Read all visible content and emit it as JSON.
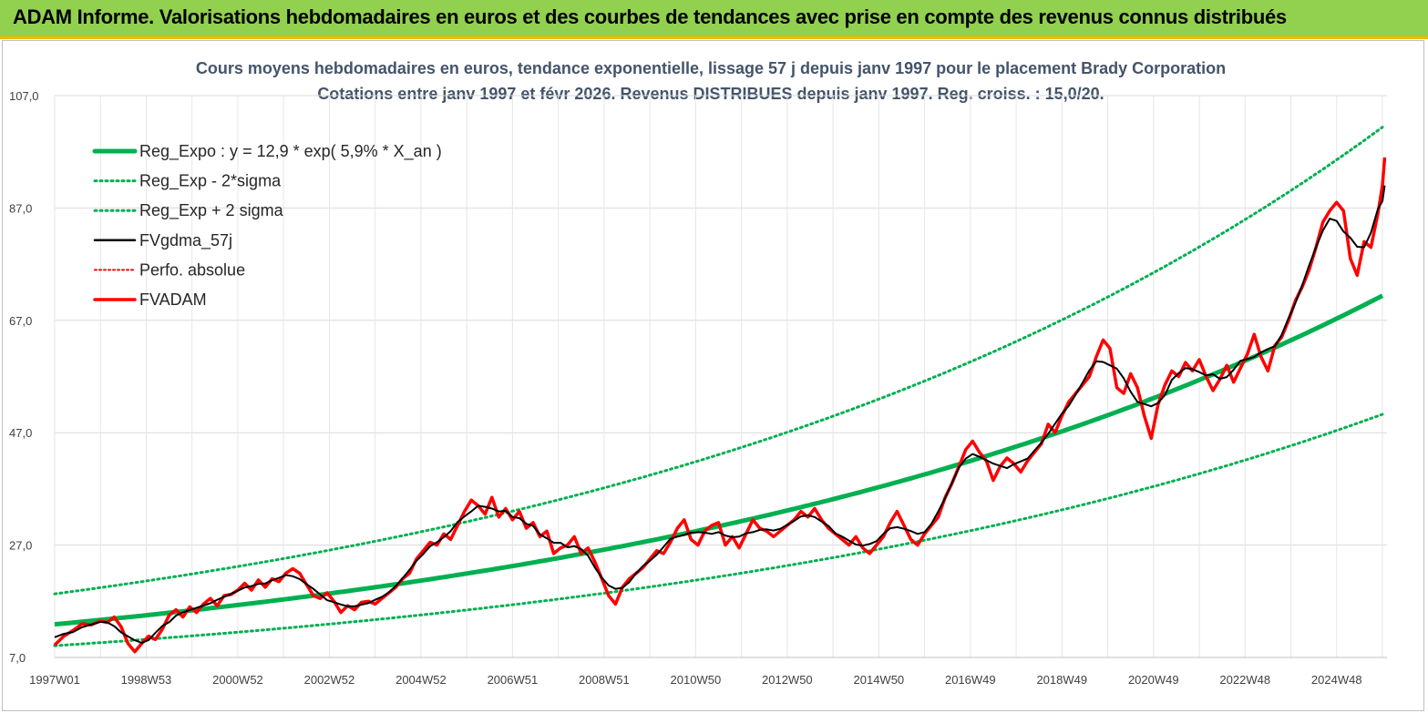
{
  "header": {
    "title": "ADAM Informe. Valorisations hebdomadaires en euros et des courbes de tendances avec prise en compte des revenus connus distribués"
  },
  "colors": {
    "banner": "#92d050",
    "trend": "#00b050",
    "sigma": "#00b050",
    "smooth": "#000000",
    "perf": "#ff0000",
    "price": "#ff0000"
  },
  "chart_data": {
    "type": "line",
    "title": "Cours moyens hebdomadaires en euros, tendance exponentielle, lissage 57 j depuis janv 1997 pour le placement Brady Corporation",
    "subtitle": "Cotations entre janv 1997 et févr 2026. Revenus DISTRIBUES depuis janv 1997. Reg. croiss. : 15,0/20.",
    "xlabel": "",
    "ylabel": "",
    "ylim": [
      7,
      107
    ],
    "xlim": [
      1997.0,
      2026.1
    ],
    "y_ticks": [
      "7,0",
      "27,0",
      "47,0",
      "67,0",
      "87,0",
      "107,0"
    ],
    "x_ticks": [
      {
        "label": "1997W01",
        "x": 1997.0
      },
      {
        "label": "1998W53",
        "x": 1999.0
      },
      {
        "label": "2000W52",
        "x": 2001.0
      },
      {
        "label": "2002W52",
        "x": 2003.0
      },
      {
        "label": "2004W52",
        "x": 2005.0
      },
      {
        "label": "2006W51",
        "x": 2007.0
      },
      {
        "label": "2008W51",
        "x": 2009.0
      },
      {
        "label": "2010W50",
        "x": 2011.0
      },
      {
        "label": "2012W50",
        "x": 2013.0
      },
      {
        "label": "2014W50",
        "x": 2015.0
      },
      {
        "label": "2016W49",
        "x": 2017.0
      },
      {
        "label": "2018W49",
        "x": 2019.0
      },
      {
        "label": "2020W49",
        "x": 2021.0
      },
      {
        "label": "2022W48",
        "x": 2023.0
      },
      {
        "label": "2024W48",
        "x": 2025.0
      }
    ],
    "grid": true,
    "legend_position": "top-left",
    "regression": {
      "a": 12.9,
      "rate": 0.059,
      "sigma_factor": 1.42
    },
    "series": [
      {
        "name": "Reg_Expo : y = 12,9 * exp( 5,9% *  X_an )",
        "style": "trend"
      },
      {
        "name": "Reg_Exp - 2*sigma",
        "style": "sigma_low"
      },
      {
        "name": "Reg_Exp + 2 sigma",
        "style": "sigma_high"
      },
      {
        "name": "FVgdma_57j",
        "style": "smooth"
      },
      {
        "name": "Perfo. absolue",
        "style": "perf"
      },
      {
        "name": "FVADAM",
        "style": "price",
        "points": [
          [
            1997.0,
            9.2
          ],
          [
            1997.2,
            10.8
          ],
          [
            1997.4,
            11.8
          ],
          [
            1997.6,
            13.0
          ],
          [
            1997.8,
            12.8
          ],
          [
            1998.0,
            13.5
          ],
          [
            1998.15,
            13.2
          ],
          [
            1998.3,
            14.2
          ],
          [
            1998.45,
            12.5
          ],
          [
            1998.6,
            9.5
          ],
          [
            1998.75,
            8.0
          ],
          [
            1998.9,
            9.5
          ],
          [
            1999.05,
            10.8
          ],
          [
            1999.2,
            10.2
          ],
          [
            1999.35,
            12.0
          ],
          [
            1999.5,
            14.5
          ],
          [
            1999.65,
            15.5
          ],
          [
            1999.8,
            14.2
          ],
          [
            1999.95,
            16.0
          ],
          [
            2000.1,
            15.0
          ],
          [
            2000.25,
            16.5
          ],
          [
            2000.4,
            17.5
          ],
          [
            2000.55,
            16.2
          ],
          [
            2000.7,
            18.0
          ],
          [
            2000.85,
            18.2
          ],
          [
            2001.0,
            19.0
          ],
          [
            2001.15,
            20.2
          ],
          [
            2001.3,
            19.0
          ],
          [
            2001.45,
            20.8
          ],
          [
            2001.6,
            19.5
          ],
          [
            2001.75,
            21.0
          ],
          [
            2001.9,
            20.5
          ],
          [
            2002.05,
            22.0
          ],
          [
            2002.2,
            22.8
          ],
          [
            2002.35,
            22.0
          ],
          [
            2002.5,
            20.0
          ],
          [
            2002.65,
            18.0
          ],
          [
            2002.8,
            17.5
          ],
          [
            2002.95,
            18.5
          ],
          [
            2003.1,
            17.0
          ],
          [
            2003.25,
            15.0
          ],
          [
            2003.4,
            16.2
          ],
          [
            2003.55,
            15.5
          ],
          [
            2003.7,
            16.8
          ],
          [
            2003.85,
            17.0
          ],
          [
            2004.0,
            16.5
          ],
          [
            2004.15,
            17.5
          ],
          [
            2004.3,
            18.5
          ],
          [
            2004.45,
            19.5
          ],
          [
            2004.6,
            21.0
          ],
          [
            2004.75,
            22.0
          ],
          [
            2004.9,
            24.5
          ],
          [
            2005.05,
            26.0
          ],
          [
            2005.2,
            27.5
          ],
          [
            2005.35,
            27.0
          ],
          [
            2005.5,
            29.0
          ],
          [
            2005.65,
            28.0
          ],
          [
            2005.8,
            30.5
          ],
          [
            2005.95,
            33.0
          ],
          [
            2006.1,
            35.0
          ],
          [
            2006.25,
            34.0
          ],
          [
            2006.4,
            32.5
          ],
          [
            2006.55,
            35.5
          ],
          [
            2006.7,
            32.0
          ],
          [
            2006.85,
            33.5
          ],
          [
            2007.0,
            31.5
          ],
          [
            2007.15,
            33.0
          ],
          [
            2007.3,
            30.0
          ],
          [
            2007.45,
            31.0
          ],
          [
            2007.6,
            28.5
          ],
          [
            2007.75,
            29.5
          ],
          [
            2007.9,
            25.5
          ],
          [
            2008.05,
            26.5
          ],
          [
            2008.2,
            27.0
          ],
          [
            2008.35,
            28.5
          ],
          [
            2008.5,
            25.5
          ],
          [
            2008.65,
            26.5
          ],
          [
            2008.8,
            24.0
          ],
          [
            2008.95,
            21.0
          ],
          [
            2009.1,
            18.0
          ],
          [
            2009.25,
            16.5
          ],
          [
            2009.4,
            19.5
          ],
          [
            2009.55,
            21.0
          ],
          [
            2009.7,
            22.0
          ],
          [
            2009.85,
            23.0
          ],
          [
            2010.0,
            24.5
          ],
          [
            2010.15,
            26.0
          ],
          [
            2010.3,
            25.5
          ],
          [
            2010.45,
            27.5
          ],
          [
            2010.6,
            30.0
          ],
          [
            2010.75,
            31.5
          ],
          [
            2010.9,
            28.0
          ],
          [
            2011.05,
            27.0
          ],
          [
            2011.2,
            29.5
          ],
          [
            2011.35,
            30.5
          ],
          [
            2011.5,
            31.0
          ],
          [
            2011.65,
            27.0
          ],
          [
            2011.8,
            28.5
          ],
          [
            2011.95,
            26.5
          ],
          [
            2012.1,
            29.0
          ],
          [
            2012.25,
            31.5
          ],
          [
            2012.4,
            30.0
          ],
          [
            2012.55,
            29.5
          ],
          [
            2012.7,
            28.5
          ],
          [
            2012.85,
            29.5
          ],
          [
            2013.0,
            30.5
          ],
          [
            2013.15,
            31.5
          ],
          [
            2013.3,
            33.0
          ],
          [
            2013.45,
            32.0
          ],
          [
            2013.6,
            33.5
          ],
          [
            2013.75,
            31.5
          ],
          [
            2013.9,
            30.0
          ],
          [
            2014.05,
            29.0
          ],
          [
            2014.2,
            28.0
          ],
          [
            2014.35,
            27.0
          ],
          [
            2014.5,
            28.5
          ],
          [
            2014.65,
            26.5
          ],
          [
            2014.8,
            25.5
          ],
          [
            2014.95,
            27.0
          ],
          [
            2015.1,
            28.5
          ],
          [
            2015.25,
            31.0
          ],
          [
            2015.4,
            33.0
          ],
          [
            2015.55,
            30.5
          ],
          [
            2015.7,
            28.0
          ],
          [
            2015.85,
            27.0
          ],
          [
            2016.0,
            29.0
          ],
          [
            2016.15,
            30.5
          ],
          [
            2016.3,
            32.0
          ],
          [
            2016.45,
            35.5
          ],
          [
            2016.6,
            38.0
          ],
          [
            2016.75,
            41.0
          ],
          [
            2016.9,
            44.0
          ],
          [
            2017.05,
            45.5
          ],
          [
            2017.2,
            43.5
          ],
          [
            2017.35,
            42.0
          ],
          [
            2017.5,
            38.5
          ],
          [
            2017.65,
            41.0
          ],
          [
            2017.8,
            42.5
          ],
          [
            2017.95,
            41.5
          ],
          [
            2018.1,
            40.0
          ],
          [
            2018.25,
            42.0
          ],
          [
            2018.4,
            43.5
          ],
          [
            2018.55,
            45.0
          ],
          [
            2018.7,
            48.5
          ],
          [
            2018.85,
            47.0
          ],
          [
            2019.0,
            50.0
          ],
          [
            2019.15,
            52.5
          ],
          [
            2019.3,
            54.0
          ],
          [
            2019.45,
            55.5
          ],
          [
            2019.6,
            57.0
          ],
          [
            2019.75,
            60.5
          ],
          [
            2019.9,
            63.5
          ],
          [
            2020.05,
            62.0
          ],
          [
            2020.2,
            55.0
          ],
          [
            2020.35,
            54.0
          ],
          [
            2020.5,
            57.5
          ],
          [
            2020.65,
            55.0
          ],
          [
            2020.8,
            50.0
          ],
          [
            2020.95,
            46.0
          ],
          [
            2021.1,
            52.0
          ],
          [
            2021.25,
            55.5
          ],
          [
            2021.4,
            58.0
          ],
          [
            2021.55,
            57.0
          ],
          [
            2021.7,
            59.5
          ],
          [
            2021.85,
            58.0
          ],
          [
            2022.0,
            60.0
          ],
          [
            2022.15,
            57.0
          ],
          [
            2022.3,
            54.5
          ],
          [
            2022.45,
            56.5
          ],
          [
            2022.6,
            59.0
          ],
          [
            2022.75,
            56.0
          ],
          [
            2022.9,
            58.5
          ],
          [
            2023.05,
            61.0
          ],
          [
            2023.2,
            64.5
          ],
          [
            2023.35,
            60.5
          ],
          [
            2023.5,
            58.0
          ],
          [
            2023.65,
            62.5
          ],
          [
            2023.8,
            64.0
          ],
          [
            2023.95,
            67.0
          ],
          [
            2024.1,
            70.5
          ],
          [
            2024.25,
            73.0
          ],
          [
            2024.4,
            76.0
          ],
          [
            2024.55,
            80.0
          ],
          [
            2024.7,
            84.5
          ],
          [
            2024.85,
            86.5
          ],
          [
            2025.0,
            88.0
          ],
          [
            2025.15,
            86.5
          ],
          [
            2025.3,
            78.0
          ],
          [
            2025.45,
            75.0
          ],
          [
            2025.6,
            81.0
          ],
          [
            2025.75,
            80.0
          ],
          [
            2025.9,
            86.0
          ],
          [
            2026.0,
            91.0
          ],
          [
            2026.05,
            96.0
          ]
        ]
      }
    ]
  }
}
